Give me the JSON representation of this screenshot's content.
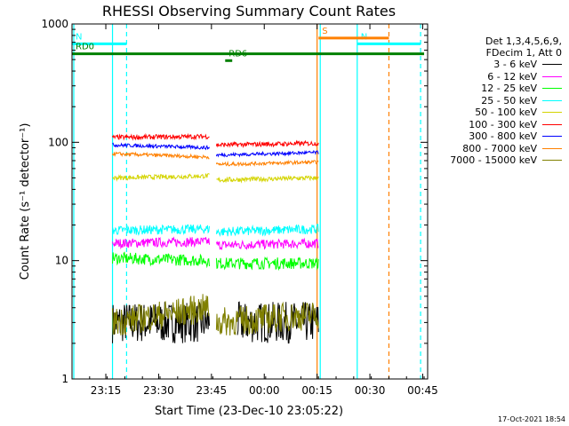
{
  "chart_data": {
    "type": "line",
    "title": "RHESSI Observing Summary Count Rates",
    "xlabel": "Start Time (23-Dec-10 23:05:22)",
    "ylabel": "Count Rate (s⁻¹ detector⁻¹)",
    "y_scale": "log",
    "ylim": [
      1,
      1000
    ],
    "xlim_minutes": [
      0,
      46
    ],
    "x_ticks": [
      {
        "label": "23:15",
        "value": 9.6
      },
      {
        "label": "23:30",
        "value": 24.6
      },
      {
        "label": "23:45",
        "value": 39.6
      },
      {
        "label": "00:00",
        "value": 54.6
      },
      {
        "label": "00:15",
        "value": 69.6
      },
      {
        "label": "00:30",
        "value": 84.6
      },
      {
        "label": "00:45",
        "value": 99.6
      }
    ],
    "y_ticks": [
      {
        "label": "1",
        "value": 1
      },
      {
        "label": "10",
        "value": 10
      },
      {
        "label": "100",
        "value": 100
      },
      {
        "label": "1000",
        "value": 1000
      }
    ],
    "legend_header": [
      "Det 1,3,4,5,6,9,",
      "FDecim 1, Att 0"
    ],
    "legend_position": "right",
    "series": [
      {
        "name": "3 - 6 keV",
        "color": "#000000",
        "segments": [
          [
            11.5,
            3.0,
            39.0,
            3.0
          ],
          [
            47.0,
            3.0,
            70.0,
            3.0
          ]
        ],
        "noise": 0.35
      },
      {
        "name": "6 - 12 keV",
        "color": "#ff00ff",
        "segments": [
          [
            11.5,
            14.0,
            39.0,
            14.5
          ],
          [
            41.0,
            13.5,
            70.0,
            14.0
          ]
        ],
        "noise": 0.08
      },
      {
        "name": "12 - 25 keV",
        "color": "#00ff00",
        "segments": [
          [
            11.5,
            10.5,
            39.0,
            10.0
          ],
          [
            41.0,
            9.5,
            70.0,
            9.5
          ]
        ],
        "noise": 0.1
      },
      {
        "name": "25 - 50 keV",
        "color": "#00ffff",
        "segments": [
          [
            11.5,
            18.0,
            39.0,
            18.5
          ],
          [
            41.0,
            17.5,
            70.0,
            18.5
          ]
        ],
        "noise": 0.08
      },
      {
        "name": "50 - 100 keV",
        "color": "#d4d400",
        "segments": [
          [
            11.5,
            50.0,
            39.0,
            52.0
          ],
          [
            41.0,
            48.0,
            70.0,
            50.0
          ]
        ],
        "noise": 0.04
      },
      {
        "name": "100 - 300 keV",
        "color": "#ff0000",
        "segments": [
          [
            11.5,
            110.0,
            39.0,
            112.0
          ],
          [
            41.0,
            95.0,
            70.0,
            98.0
          ]
        ],
        "noise": 0.04
      },
      {
        "name": "300 - 800 keV",
        "color": "#0000ff",
        "segments": [
          [
            11.5,
            95.0,
            39.0,
            90.0
          ],
          [
            41.0,
            78.0,
            70.0,
            82.0
          ]
        ],
        "noise": 0.03
      },
      {
        "name": "800 - 7000 keV",
        "color": "#ff8000",
        "segments": [
          [
            11.5,
            80.0,
            39.0,
            75.0
          ],
          [
            41.0,
            65.0,
            70.0,
            68.0
          ]
        ],
        "noise": 0.03
      },
      {
        "name": "7000 - 15000 keV",
        "color": "#808000",
        "segments": [
          [
            11.5,
            3.0,
            39.0,
            4.0
          ],
          [
            41.0,
            3.0,
            70.0,
            3.5
          ]
        ],
        "noise": 0.25
      }
    ],
    "flags": [
      {
        "label": "N",
        "color": "#00ffff",
        "level": 680,
        "start": 0,
        "end": 15.5
      },
      {
        "label": "N",
        "color": "#00ffff",
        "level": 680,
        "start": 81.0,
        "end": 99.0
      },
      {
        "label": "S",
        "color": "#ff8000",
        "level": 760,
        "start": 70.0,
        "end": 90.0
      },
      {
        "label": "RD0",
        "color": "#008000",
        "level": 560,
        "start": 0,
        "end": 100.0
      },
      {
        "label": "RD6",
        "color": "#008000",
        "level": 490,
        "start": 43.5,
        "end": 45.5
      }
    ],
    "markers": [
      {
        "minute": 0.5,
        "color": "#00ffff",
        "style": "solid"
      },
      {
        "minute": 11.5,
        "color": "#00ffff",
        "style": "solid"
      },
      {
        "minute": 15.5,
        "color": "#00ffff",
        "style": "dashed"
      },
      {
        "minute": 69.6,
        "color": "#ff8000",
        "style": "solid"
      },
      {
        "minute": 70.5,
        "color": "#00ffff",
        "style": "solid"
      },
      {
        "minute": 81.0,
        "color": "#00ffff",
        "style": "solid"
      },
      {
        "minute": 90.0,
        "color": "#ff8000",
        "style": "dashed"
      },
      {
        "minute": 99.0,
        "color": "#00ffff",
        "style": "dashed"
      }
    ]
  },
  "footer_date": "17-Oct-2021 18:54"
}
